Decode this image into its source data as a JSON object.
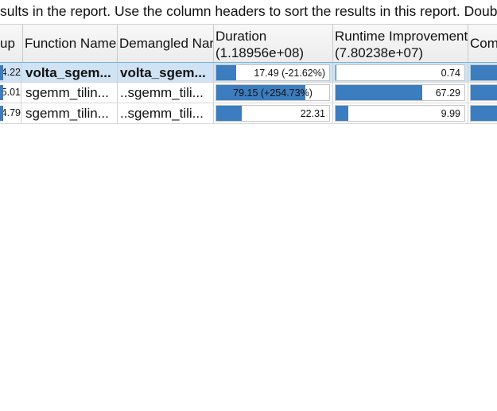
{
  "description": "sults in the report. Use the column headers to sort the results in this report. Double-",
  "colors": {
    "bar": "#3b7dbf",
    "selected_row": "#cfe3f5"
  },
  "columns": {
    "speedup": "up",
    "function_name": "Function Name",
    "demangled_name": "Demangled Nar",
    "duration": {
      "line1": "Duration",
      "line2": "(1.18956e+08)"
    },
    "runtime_improvement": {
      "line1": "Runtime Improvement",
      "line2": "(7.80238e+07)"
    },
    "next": "Com"
  },
  "rows": [
    {
      "speedup": "4.22",
      "function_name": "volta_sgem...",
      "demangled_name": "volta_sgem...",
      "duration": {
        "label": "17.49  (-21.62%)",
        "percent": 17.49
      },
      "runtime_improvement": {
        "label": "0.74",
        "percent": 0.74
      },
      "selected": true
    },
    {
      "speedup": "5.01",
      "function_name": "sgemm_tilin...",
      "demangled_name": "..sgemm_tili...",
      "duration": {
        "label": "79.15  (+254.73%)",
        "percent": 79.15
      },
      "runtime_improvement": {
        "label": "67.29",
        "percent": 67.29
      },
      "selected": false
    },
    {
      "speedup": "4.79",
      "function_name": "sgemm_tilin...",
      "demangled_name": "..sgemm_tili...",
      "duration": {
        "label": "22.31",
        "percent": 22.31
      },
      "runtime_improvement": {
        "label": "9.99",
        "percent": 9.99
      },
      "selected": false
    }
  ]
}
